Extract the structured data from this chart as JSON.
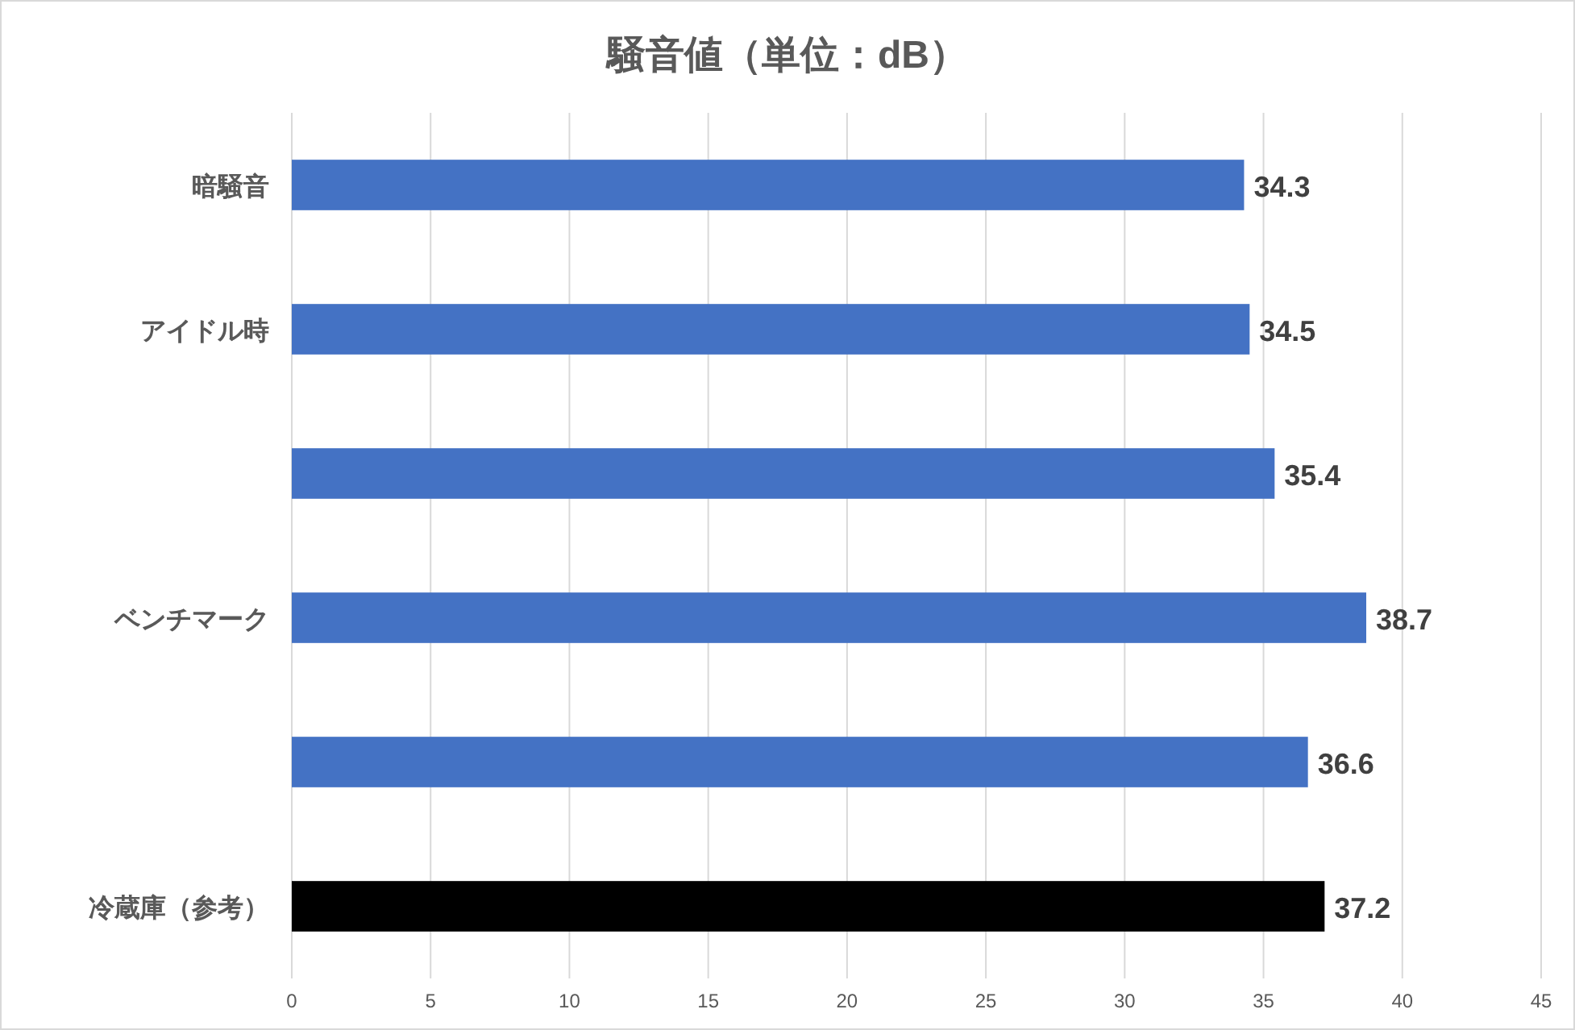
{
  "chart_data": {
    "type": "bar",
    "orientation": "horizontal",
    "title": "騒音値（単位：dB）",
    "categories": [
      "暗騒音",
      "アイドル時",
      null,
      "ベンチマーク",
      null,
      "冷蔵庫（参考）"
    ],
    "values": [
      34.3,
      34.5,
      35.4,
      38.7,
      36.6,
      37.2
    ],
    "colors": [
      "#4472c4",
      "#4472c4",
      "#4472c4",
      "#4472c4",
      "#4472c4",
      "#000000"
    ],
    "xlim": [
      0,
      45
    ],
    "xticks": [
      0,
      5,
      10,
      15,
      20,
      25,
      30,
      35,
      40,
      45
    ],
    "grid": "x",
    "data_labels": true
  }
}
